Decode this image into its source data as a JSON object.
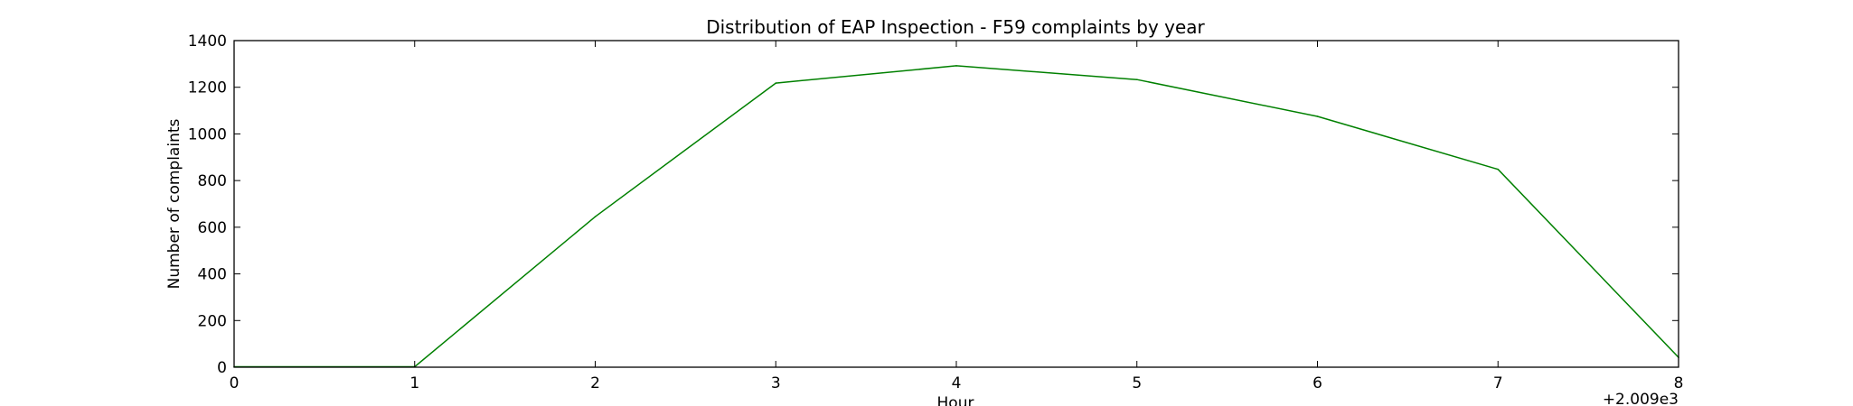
{
  "chart_data": {
    "type": "line",
    "title": "Distribution of  EAP Inspection - F59 complaints by year",
    "xlabel": "Hour",
    "ylabel": "Number of complaints",
    "x_offset_label": "+2.009e3",
    "xlim": [
      0,
      8
    ],
    "ylim": [
      0,
      1400
    ],
    "x_ticks": [
      0,
      1,
      2,
      3,
      4,
      5,
      6,
      7,
      8
    ],
    "y_ticks": [
      0,
      200,
      400,
      600,
      800,
      1000,
      1200,
      1400
    ],
    "grid": false,
    "series": [
      {
        "name": "complaints",
        "color": "#008000",
        "x": [
          0,
          1,
          2,
          3,
          4,
          5,
          6,
          7,
          8
        ],
        "y": [
          2,
          2,
          645,
          1218,
          1292,
          1233,
          1075,
          848,
          42
        ]
      }
    ]
  }
}
